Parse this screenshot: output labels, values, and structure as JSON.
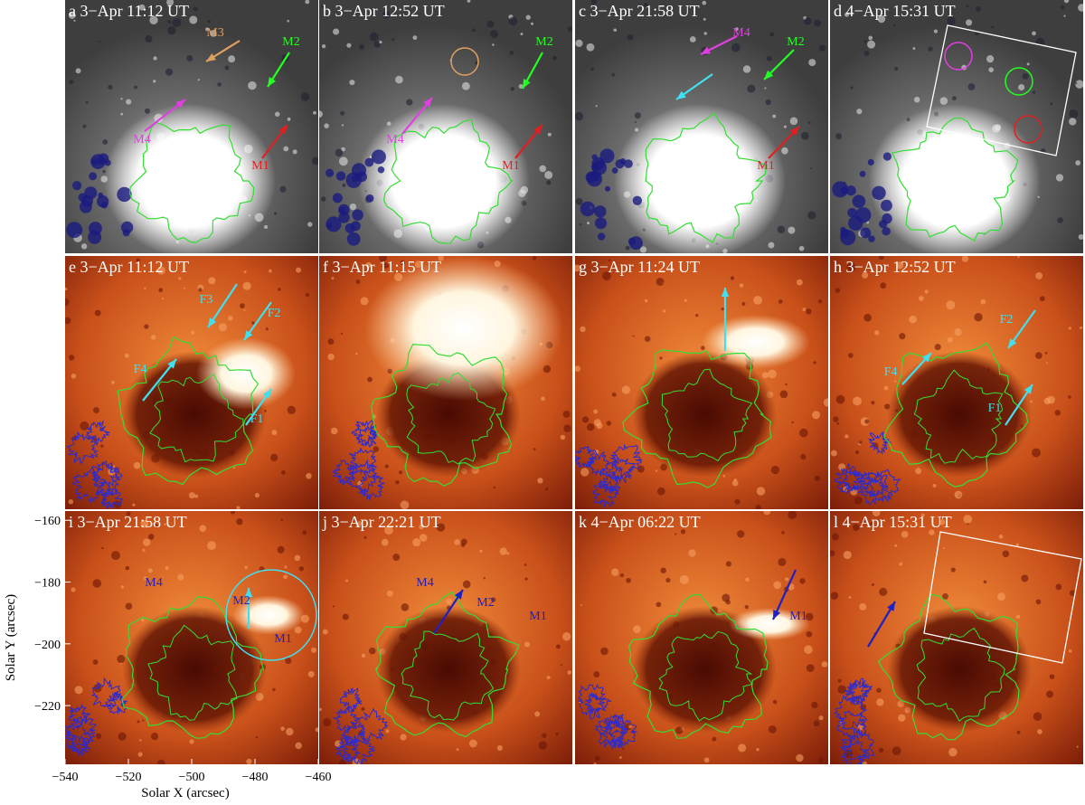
{
  "panels": [
    {
      "label": "a 3−Apr 11:12 UT",
      "notes": [
        "M3",
        "M2",
        "M4",
        "M1"
      ]
    },
    {
      "label": "b 3−Apr 12:52 UT",
      "notes": [
        "M2",
        "M4",
        "M1"
      ]
    },
    {
      "label": "c 3−Apr 21:58 UT",
      "notes": [
        "M4",
        "M2",
        "M1"
      ]
    },
    {
      "label": "d 4−Apr 15:31 UT",
      "notes": []
    },
    {
      "label": "e 3−Apr 11:12 UT",
      "notes": [
        "F3",
        "F2",
        "F4",
        "F1"
      ]
    },
    {
      "label": "f 3−Apr 11:15 UT",
      "notes": []
    },
    {
      "label": "g 3−Apr 11:24 UT",
      "notes": []
    },
    {
      "label": "h 3−Apr 12:52 UT",
      "notes": [
        "F2",
        "F4",
        "F1"
      ]
    },
    {
      "label": "i 3−Apr 21:58 UT",
      "notes": [
        "M4",
        "M2",
        "M1"
      ]
    },
    {
      "label": "j 3−Apr 22:21 UT",
      "notes": [
        "M4",
        "M2",
        "M1"
      ]
    },
    {
      "label": "k 4−Apr 06:22 UT",
      "notes": [
        "M1"
      ]
    },
    {
      "label": "l 4−Apr 15:31 UT",
      "notes": []
    }
  ],
  "axes": {
    "xlabel": "Solar X (arcsec)",
    "ylabel": "Solar Y (arcsec)",
    "xlim": [
      -540,
      -460
    ],
    "ylim": [
      -239,
      -157
    ],
    "xticks": [
      {
        "value": -540,
        "label": "−540"
      },
      {
        "value": -520,
        "label": "−520"
      },
      {
        "value": -500,
        "label": "−500"
      },
      {
        "value": -480,
        "label": "−480"
      },
      {
        "value": -460,
        "label": "−460"
      }
    ],
    "yticks": [
      {
        "value": -160,
        "label": "−160"
      },
      {
        "value": -180,
        "label": "−180"
      },
      {
        "value": -200,
        "label": "−200"
      },
      {
        "value": -220,
        "label": "−220"
      }
    ]
  }
}
